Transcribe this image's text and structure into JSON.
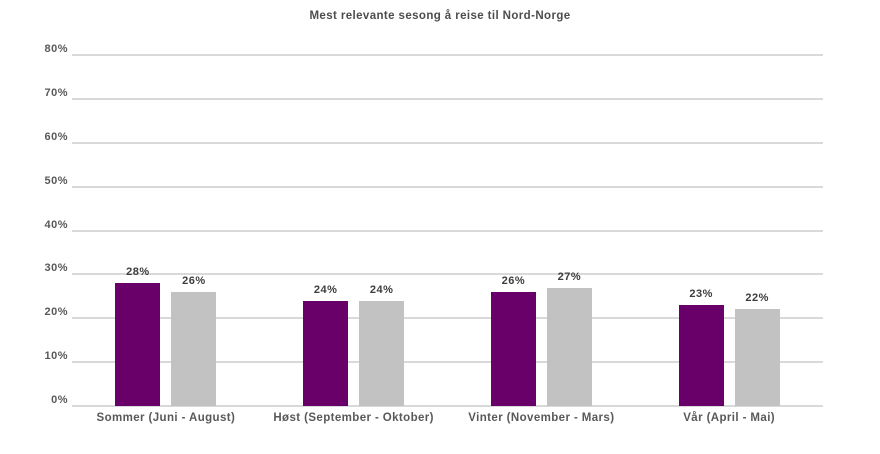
{
  "title": "Mest relevante sesong å reise til Nord-Norge",
  "colors": {
    "bar_primary": "#690069",
    "bar_secondary": "#c2c2c2",
    "gridline": "#d9d9d9",
    "axis_text": "#595959",
    "value_text": "#3d3d3d",
    "background": "#ffffff"
  },
  "chart_data": {
    "type": "bar",
    "title": "Mest relevante sesong å reise til Nord-Norge",
    "categories": [
      "Sommer (Juni - August)",
      "Høst (September - Oktober)",
      "Vinter (November - Mars)",
      "Vår (April - Mai)"
    ],
    "series": [
      {
        "name": "purple-series",
        "color": "#690069",
        "values": [
          28,
          24,
          26,
          23
        ],
        "labels": [
          "28%",
          "24%",
          "26%",
          "23%"
        ]
      },
      {
        "name": "gray-series",
        "color": "#c2c2c2",
        "values": [
          26,
          24,
          27,
          22
        ],
        "labels": [
          "26%",
          "24%",
          "27%",
          "22%"
        ]
      }
    ],
    "xlabel": "",
    "ylabel": "",
    "ylim": [
      0,
      80
    ],
    "ytick_values": [
      0,
      10,
      20,
      30,
      40,
      50,
      60,
      70,
      80
    ],
    "ytick_labels": [
      "0%",
      "10%",
      "20%",
      "30%",
      "40%",
      "50%",
      "60%",
      "70%",
      "80%"
    ],
    "grid": true,
    "legend": false
  }
}
